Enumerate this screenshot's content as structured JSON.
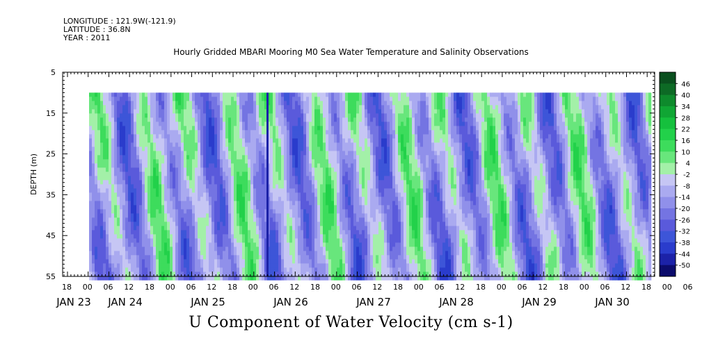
{
  "meta": {
    "longitude": "LONGITUDE : 121.9W(-121.9)",
    "latitude": "LATITUDE : 36.8N",
    "year": "YEAR : 2011"
  },
  "chart_data": {
    "type": "heatmap",
    "title": "Hourly Gridded MBARI Mooring M0 Sea Water Temperature and Salinity Observations",
    "bottom_title": "U Component of Water Velocity (cm s-1)",
    "ylabel": "DEPTH (m)",
    "ylim": [
      5,
      55
    ],
    "y_inverted": true,
    "y_ticks": [
      "5",
      "15",
      "25",
      "35",
      "45",
      "55"
    ],
    "data_depth_range": [
      10,
      55
    ],
    "x_hour_labels": [
      "18",
      "00",
      "06",
      "12",
      "18",
      "00",
      "06",
      "12",
      "18",
      "00",
      "06",
      "12",
      "18",
      "00",
      "06",
      "12",
      "18",
      "00",
      "06",
      "12",
      "18",
      "00",
      "06",
      "12",
      "18",
      "00",
      "06",
      "12",
      "18",
      "00",
      "06",
      "12",
      "18"
    ],
    "x_day_labels": [
      "JAN 23",
      "JAN 24",
      "JAN 25",
      "JAN 26",
      "JAN 27",
      "JAN 28",
      "JAN 29",
      "JAN 30"
    ],
    "colorbar": {
      "labels": [
        "46",
        "40",
        "34",
        "28",
        "22",
        "16",
        "10",
        "4",
        "-2",
        "-8",
        "-14",
        "-20",
        "-26",
        "-32",
        "-38",
        "-44",
        "-50"
      ],
      "min": -50,
      "max": 52,
      "step": 6,
      "colors_high_to_low": [
        "#0a4f1e",
        "#0d6a25",
        "#0e8a2c",
        "#10a634",
        "#15c03d",
        "#22d14a",
        "#3ddc5c",
        "#68e67c",
        "#a3f0a8",
        "#c6c6f4",
        "#aaaaf0",
        "#9090ea",
        "#7474e2",
        "#5a5adb",
        "#3d55d8",
        "#2a3ccc",
        "#1c22a8",
        "#0c0c6c"
      ]
    }
  }
}
